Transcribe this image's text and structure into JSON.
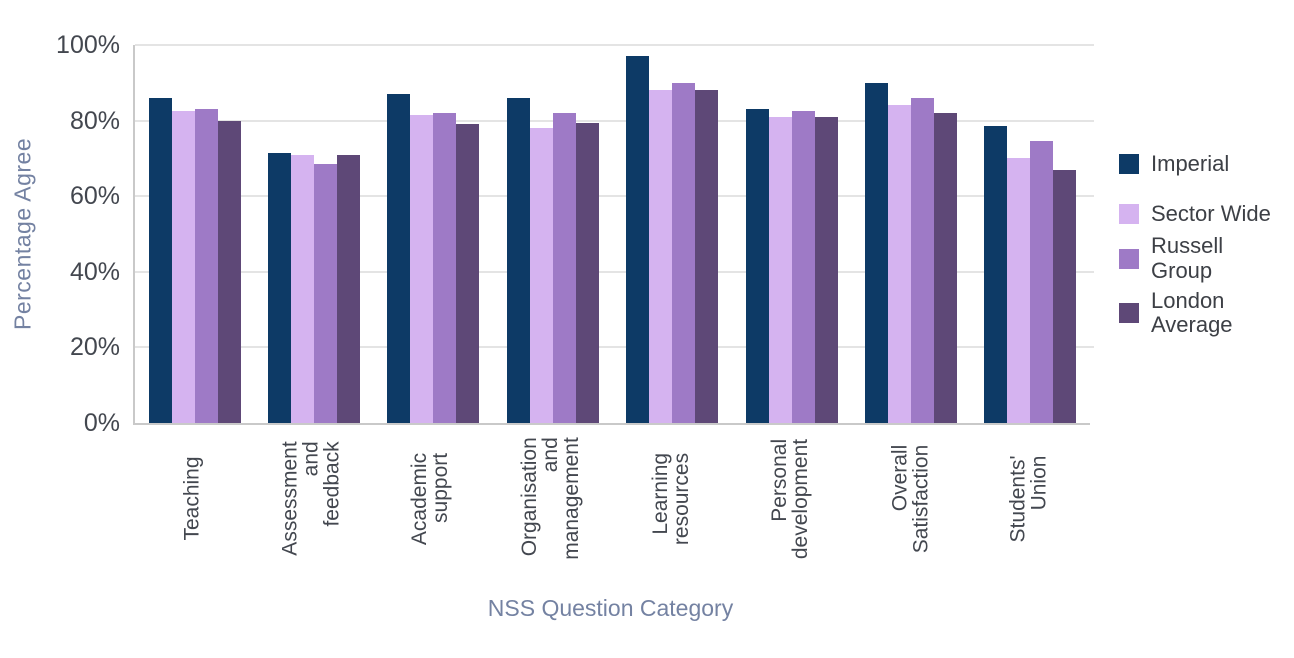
{
  "chart_data": {
    "type": "bar",
    "title": "",
    "xlabel": "NSS Question Category",
    "ylabel": "Percentage Agree",
    "ylim": [
      0,
      100
    ],
    "yticks": [
      0,
      20,
      40,
      60,
      80,
      100
    ],
    "ytick_suffix": "%",
    "grid": "horizontal",
    "legend_position": "right",
    "categories": [
      "Teaching",
      "Assessment and feedback",
      "Academic support",
      "Organisation and management",
      "Learning resources",
      "Personal development",
      "Overall Satisfaction",
      "Students' Union"
    ],
    "category_display": [
      "Teaching",
      "Assessment\nand\nfeedback",
      "Academic\nsupport",
      "Organisation\nand\nmanagement",
      "Learning\nresources",
      "Personal\ndevelopment",
      "Overall\nSatisfaction",
      "Students'\nUnion"
    ],
    "series": [
      {
        "name": "Imperial",
        "legend_label": "Imperial",
        "color": "#0d3a66",
        "values": [
          86,
          71.5,
          87,
          86,
          97,
          83,
          90,
          78.5
        ]
      },
      {
        "name": "Sector Wide",
        "legend_label": "Sector Wide",
        "color": "#d5b3f0",
        "values": [
          82.5,
          71,
          81.5,
          78,
          88,
          81,
          84,
          70
        ]
      },
      {
        "name": "Russell Group",
        "legend_label": "Russell\nGroup",
        "color": "#9e7ac6",
        "values": [
          83,
          68.5,
          82,
          82,
          90,
          82.5,
          86,
          74.5
        ]
      },
      {
        "name": "London Average",
        "legend_label": "London\nAverage",
        "color": "#5e4877",
        "values": [
          80,
          71,
          79,
          79.5,
          88,
          81,
          82,
          67
        ]
      }
    ]
  },
  "colors": {
    "axis_line": "#c9c9c9",
    "gridline": "#e4e4e4",
    "tick_text": "#43474f",
    "axis_title_text": "#7482a2",
    "background": "#ffffff"
  }
}
